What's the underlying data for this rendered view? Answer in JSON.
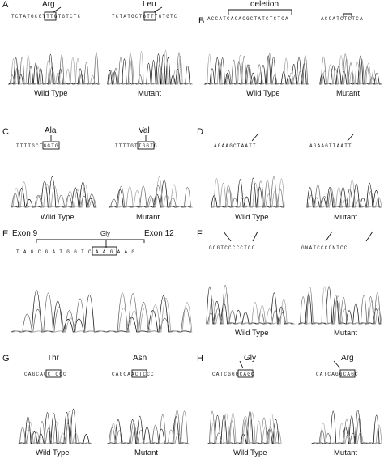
{
  "figure": {
    "panels": [
      {
        "id": "A",
        "letter": "A",
        "top_aa": "Arg",
        "top_aa2": "Leu",
        "seq_wt": "TCTATGCGTTTGTGTCTC",
        "seq_mut": "TCTATGCTGTTTGTGTC",
        "wt_label": "Wild Type",
        "mut_label": "Mutant"
      },
      {
        "id": "B",
        "letter": "B",
        "top_aa": "deletion",
        "seq_wt": "ACCATCACACGCTATCTCTCA",
        "seq_mut": "ACCATCTCTCA",
        "wt_label": "Wild Type",
        "mut_label": "Mutant"
      },
      {
        "id": "C",
        "letter": "C",
        "top_aa": "Ala",
        "top_aa2": "Val",
        "seq_wt": "TTTTGCTGGTG",
        "seq_mut": "TTTTGTTGGTG",
        "wt_label": "Wild Type",
        "mut_label": "Mutant"
      },
      {
        "id": "D",
        "letter": "D",
        "seq_wt": "AGAAGCTAATT",
        "seq_mut": "AGAAGTTAATT",
        "wt_label": "Wild Type",
        "mut_label": "Mutant"
      },
      {
        "id": "E",
        "letter": "E",
        "exon_left": "Exon 9",
        "exon_right": "Exon 12",
        "top_aa": "Gly",
        "seq": "TAGCGATGGTCAAGAAG"
      },
      {
        "id": "F",
        "letter": "F",
        "seq_wt": "GCGTCCCCCTCC",
        "seq_mut": "GNATCCCCNTCC",
        "wt_label": "Wild Type",
        "mut_label": "Mutant"
      },
      {
        "id": "G",
        "letter": "G",
        "top_aa": "Thr",
        "top_aa2": "Asn",
        "seq_wt": "CAGCACCTCCC",
        "seq_mut": "CAGCAACTCCC",
        "wt_label": "Wild Type",
        "mut_label": "Mutant"
      },
      {
        "id": "H",
        "letter": "H",
        "top_aa": "Gly",
        "top_aa2": "Arg",
        "seq_wt": "CATCGGGCAGC",
        "seq_mut": "CATCAGGCAGC",
        "wt_label": "Wild Type",
        "mut_label": "Mutant"
      }
    ]
  }
}
